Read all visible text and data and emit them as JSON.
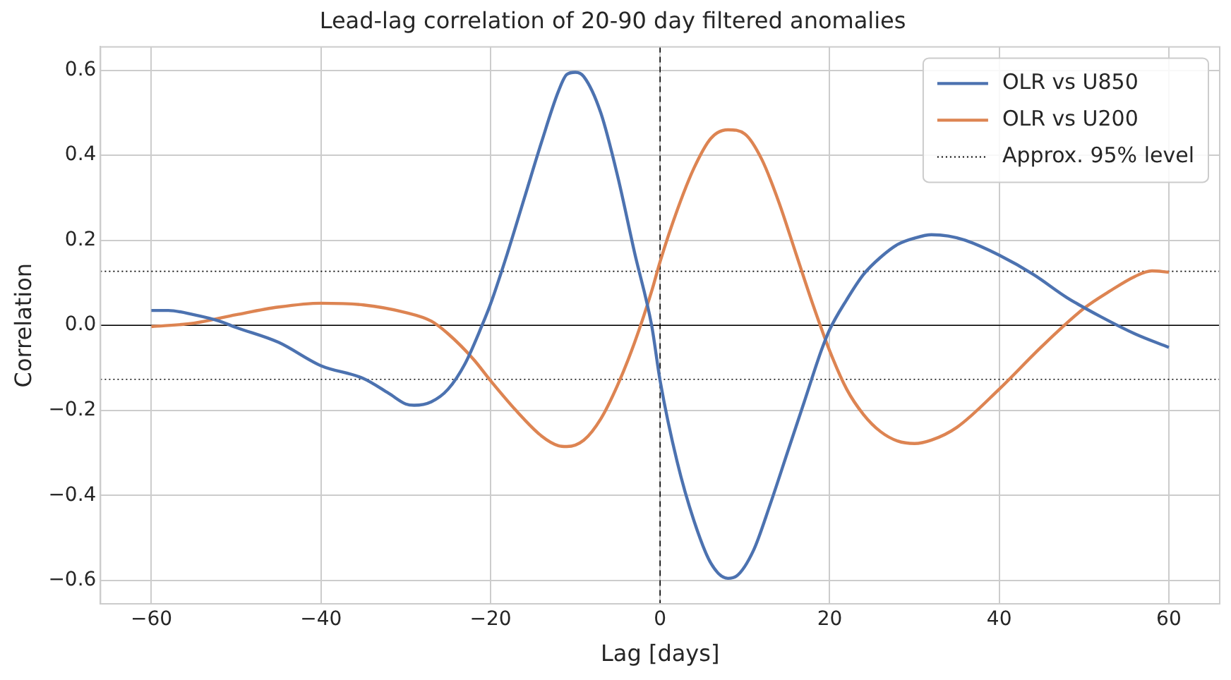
{
  "chart_data": {
    "type": "line",
    "title": "Lead-lag correlation of 20-90 day filtered anomalies",
    "xlabel": "Lag [days]",
    "ylabel": "Correlation",
    "x": [
      -60,
      -58,
      -55,
      -52,
      -50,
      -45,
      -40,
      -35,
      -32,
      -30,
      -29,
      -27,
      -25,
      -23,
      -21,
      -20,
      -18,
      -16,
      -14,
      -12,
      -11,
      -10,
      -9,
      -7,
      -5,
      -3,
      -1,
      0,
      2,
      4,
      6,
      8,
      9,
      11,
      13,
      15,
      17,
      19,
      20,
      22,
      24,
      26,
      28,
      30,
      32,
      34,
      36,
      40,
      44,
      48,
      52,
      56,
      60
    ],
    "series": [
      {
        "name": "OLR vs U850",
        "color": "#4c72b0",
        "values": [
          0.035,
          0.035,
          0.025,
          0.01,
          -0.005,
          -0.04,
          -0.095,
          -0.125,
          -0.16,
          -0.185,
          -0.188,
          -0.18,
          -0.15,
          -0.09,
          0.0,
          0.05,
          0.17,
          0.3,
          0.43,
          0.55,
          0.59,
          0.595,
          0.585,
          0.5,
          0.35,
          0.17,
          0.0,
          -0.13,
          -0.32,
          -0.46,
          -0.56,
          -0.595,
          -0.59,
          -0.53,
          -0.42,
          -0.3,
          -0.18,
          -0.06,
          -0.01,
          0.06,
          0.12,
          0.16,
          0.19,
          0.205,
          0.213,
          0.21,
          0.2,
          0.165,
          0.12,
          0.065,
          0.02,
          -0.02,
          -0.052
        ]
      },
      {
        "name": "OLR vs U200",
        "color": "#dd8452",
        "x": [
          -60,
          -55,
          -50,
          -45,
          -40,
          -35,
          -30,
          -27,
          -25,
          -22,
          -20,
          -17,
          -14,
          -12,
          -11,
          -9,
          -7,
          -5,
          -3,
          -1,
          0,
          2,
          4,
          6,
          8,
          10,
          12,
          14,
          16,
          18,
          20,
          22,
          24,
          26,
          28,
          30,
          32,
          35,
          40,
          45,
          50,
          53,
          56,
          58,
          60
        ],
        "values": [
          -0.003,
          0.005,
          0.025,
          0.043,
          0.052,
          0.048,
          0.03,
          0.01,
          -0.02,
          -0.08,
          -0.13,
          -0.2,
          -0.26,
          -0.283,
          -0.285,
          -0.27,
          -0.22,
          -0.14,
          -0.04,
          0.08,
          0.15,
          0.27,
          0.37,
          0.44,
          0.46,
          0.45,
          0.39,
          0.29,
          0.17,
          0.05,
          -0.06,
          -0.15,
          -0.21,
          -0.25,
          -0.272,
          -0.278,
          -0.27,
          -0.24,
          -0.15,
          -0.05,
          0.04,
          0.08,
          0.115,
          0.128,
          0.125
        ]
      }
    ],
    "ref_lines": [
      {
        "axis": "y",
        "value": 0,
        "color": "#000000",
        "line_style": "solid"
      },
      {
        "axis": "x",
        "value": 0,
        "color": "#000000",
        "line_style": "dashed"
      },
      {
        "axis": "y",
        "value": 0.127,
        "color": "#000000",
        "line_style": "dotted",
        "label": "Approx. 95% level"
      },
      {
        "axis": "y",
        "value": -0.127,
        "color": "#000000",
        "line_style": "dotted"
      }
    ],
    "xlim": [
      -66,
      66
    ],
    "xticks": [
      -60,
      -40,
      -20,
      0,
      20,
      40,
      60
    ],
    "ylim": [
      -0.655,
      0.655
    ],
    "yticks": [
      -0.6,
      -0.4,
      -0.2,
      {
        "value": 0,
        "label": "0.0"
      },
      0.2,
      0.4,
      0.6
    ],
    "grid": true,
    "legend": "top right",
    "marker": "none",
    "line_style": "solid"
  }
}
